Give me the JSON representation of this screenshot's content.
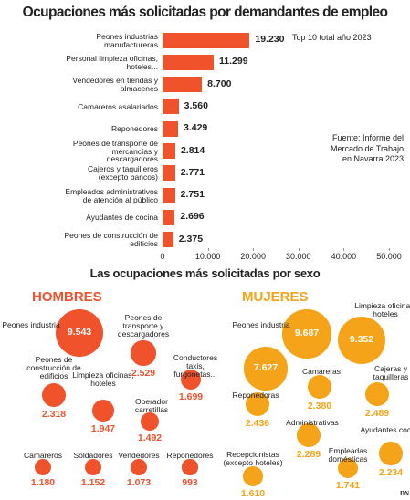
{
  "chart_data": [
    {
      "type": "bar",
      "orientation": "horizontal",
      "title": "Ocupaciones más solicitadas por demandantes de empleo",
      "annotation": "Top 10 total año 2023",
      "source": "Fuente: Informe del Mercado de Trabajo en Navarra 2023",
      "color": "#f0522b",
      "categories": [
        "Peones industrias manufactureras",
        "Personal limpieza oficinas, hoteles...",
        "Vendedores en tiendas y almacenes",
        "Camareros asalariados",
        "Reponedores",
        "Peones de transporte de mercancías y descargadores",
        "Cajeros y taquilleros (excepto bancos)",
        "Empleados administrativos de atención al público",
        "Ayudantes de cocina",
        "Peones de construcción de edificios"
      ],
      "values": [
        19230,
        11299,
        8700,
        3560,
        3429,
        2814,
        2771,
        2751,
        2696,
        2375
      ],
      "value_labels": [
        "19.230",
        "11.299",
        "8.700",
        "3.560",
        "3.429",
        "2.814",
        "2.771",
        "2.751",
        "2.696",
        "2.375"
      ],
      "xlim": [
        0,
        50000
      ],
      "xticks": [
        0,
        {
          "value": 10000,
          "label": "10.000"
        },
        {
          "value": 20000,
          "label": "20.000"
        },
        {
          "value": 30000,
          "label": "30.000"
        },
        {
          "value": 40000,
          "label": "40.000"
        },
        {
          "value": 50000,
          "label": "50.000"
        }
      ]
    },
    {
      "type": "bubble",
      "title": "Las ocupaciones más solicitadas por sexo",
      "group": "HOMBRES",
      "color": "#f0522b",
      "categories": [
        "Peones industria",
        "Peones de transporte y descargadores",
        "Conductores taxis, furgonetas...",
        "Peones de construcción de edificios",
        "Limpieza oficinas, hoteles",
        "Operador carretillas",
        "Camareros",
        "Soldadores",
        "Vendedores",
        "Reponedores"
      ],
      "values": [
        9543,
        2529,
        1699,
        2318,
        1947,
        1492,
        1180,
        1152,
        1073,
        993
      ],
      "value_labels": [
        "9.543",
        "2.529",
        "1.699",
        "2.318",
        "1.947",
        "1.492",
        "1.180",
        "1.152",
        "1.073",
        "993"
      ]
    },
    {
      "type": "bubble",
      "group": "MUJERES",
      "color": "#f5a318",
      "categories": [
        "Peones industria",
        "Limpieza oficinas, hoteles",
        null,
        "Camareras",
        "Cajeras y taquilleras",
        "Reponedoras",
        "Administrativas",
        "Ayudantes cocina",
        "Empleadas domésticas",
        "Recepcionistas (excepto hoteles)"
      ],
      "values": [
        9687,
        9352,
        7627,
        2380,
        2489,
        2436,
        2289,
        2234,
        1741,
        1610
      ],
      "value_labels": [
        "9.687",
        "9.352",
        "7.627",
        "2.380",
        "2.489",
        "2.436",
        "2.289",
        "2.234",
        "1.741",
        "1.610"
      ]
    }
  ],
  "logo": "DN"
}
